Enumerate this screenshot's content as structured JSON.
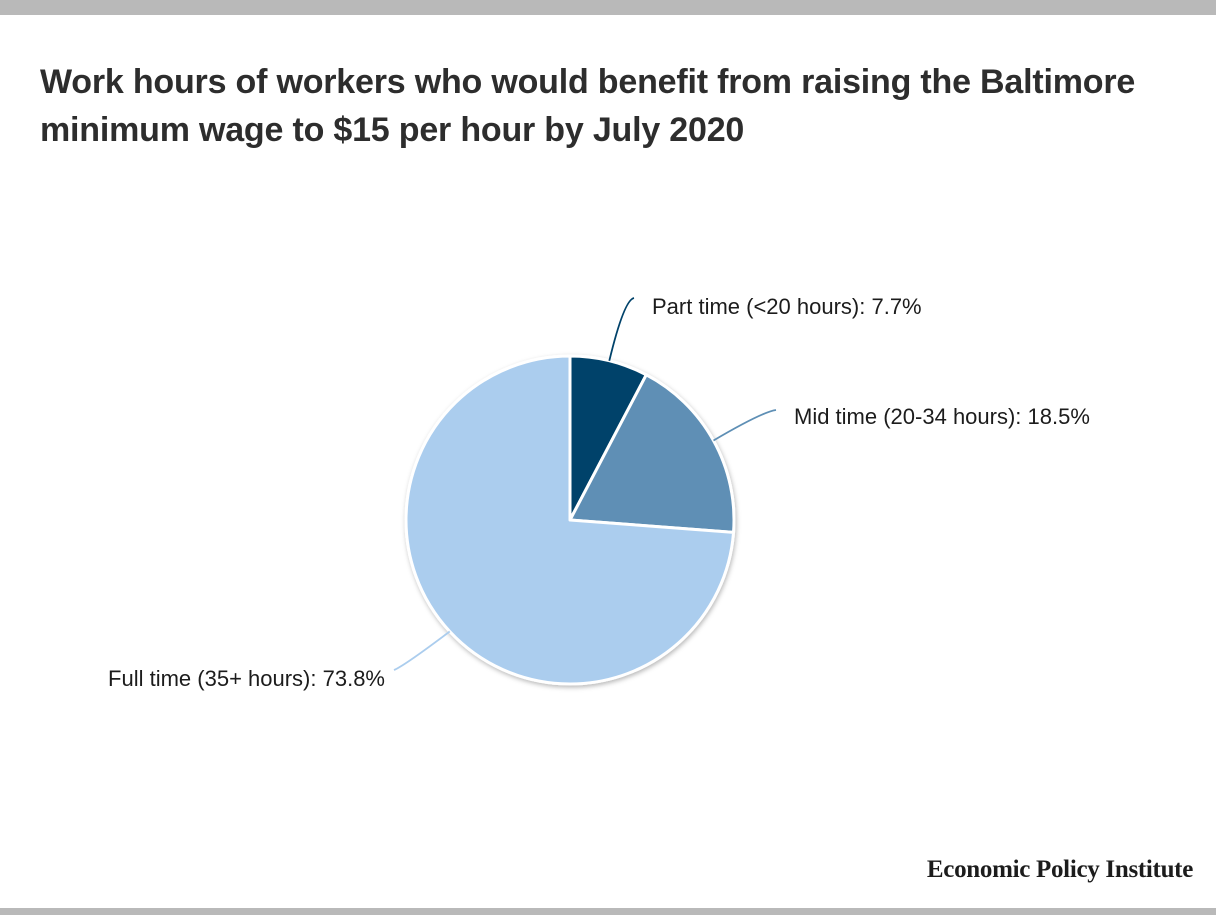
{
  "chart_data": {
    "type": "pie",
    "title": "Work hours of workers who would benefit from raising the Baltimore minimum wage to $15 per hour by July 2020",
    "slices": [
      {
        "label": "Part time (<20 hours): 7.7%",
        "category": "Part time (<20 hours)",
        "value": 7.7,
        "color": "#00426a"
      },
      {
        "label": "Mid time (20-34 hours): 18.5%",
        "category": "Mid time (20-34 hours)",
        "value": 18.5,
        "color": "#5e8fb5"
      },
      {
        "label": "Full time (35+ hours): 73.8%",
        "category": "Full time (35+ hours)",
        "value": 73.8,
        "color": "#abcdee"
      }
    ],
    "unit": "%"
  },
  "source": "Economic Policy Institute",
  "colors": {
    "title_text": "#2d2d2d",
    "frame_bars": "#b9b9b9",
    "slice_border": "#ffffff"
  }
}
